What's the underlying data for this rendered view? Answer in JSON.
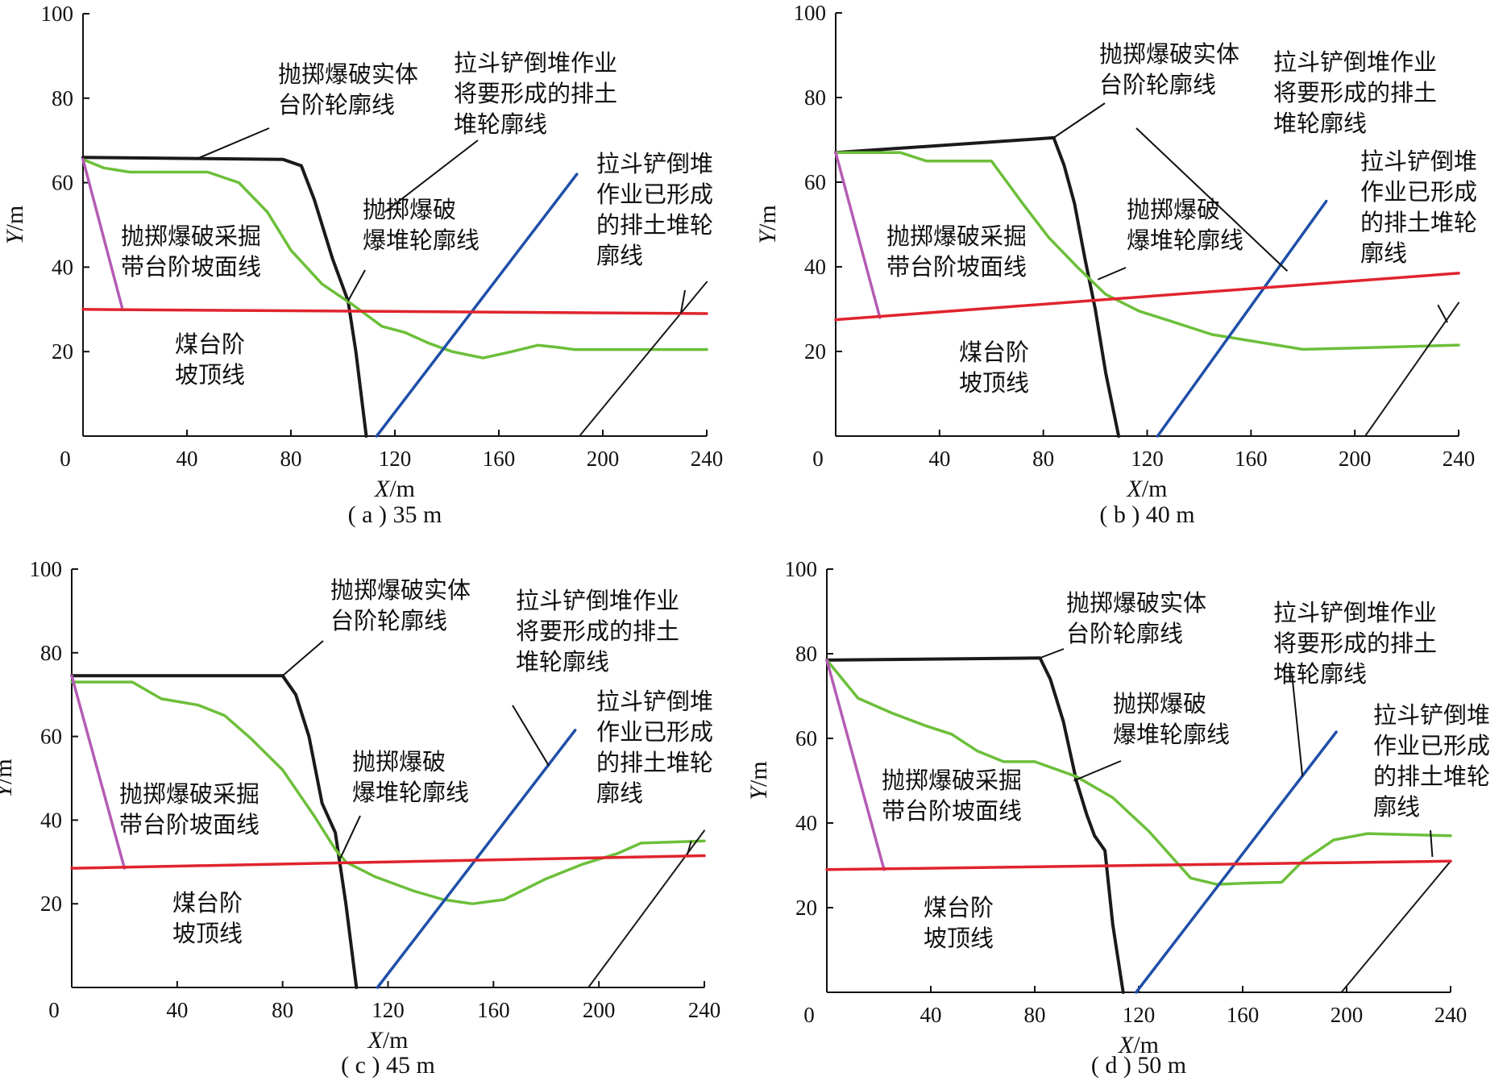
{
  "colors": {
    "solid_bench": "#1a1a1a",
    "muck_pile": "#6cbf3a",
    "planned_dump": "#1f4fa8",
    "formed_dump": "#1a1a1a",
    "mining_slope": "#b45cb4",
    "coal_crest": "#e0242d"
  },
  "labels": {
    "solid_bench": [
      "抛掷爆破实体",
      "台阶轮廓线"
    ],
    "planned_dump": [
      "拉斗铲倒堆作业",
      "将要形成的排土",
      "堆轮廓线"
    ],
    "formed_dump": [
      "拉斗铲倒堆",
      "作业已形成",
      "的排土堆轮",
      "廓线"
    ],
    "muck_pile": [
      "抛掷爆破",
      "爆堆轮廓线"
    ],
    "mining_slope": [
      "抛掷爆破采掘",
      "带台阶坡面线"
    ],
    "coal_crest": [
      "煤台阶",
      "坡顶线"
    ]
  },
  "chart_data": [
    {
      "type": "line",
      "caption": "( a ) 35 m",
      "xlabel": "X/m",
      "ylabel": "Y/m",
      "xlim": [
        0,
        240
      ],
      "ylim": [
        0,
        100
      ],
      "xticks": [
        0,
        40,
        80,
        120,
        160,
        200,
        240
      ],
      "yticks": [
        20,
        40,
        60,
        80,
        100
      ],
      "series": [
        {
          "key": "solid_bench",
          "points": [
            [
              0,
              66
            ],
            [
              77,
              65.5
            ],
            [
              84,
              64
            ],
            [
              89,
              56
            ],
            [
              96,
              42
            ],
            [
              102,
              32
            ],
            [
              105,
              20
            ],
            [
              109,
              0
            ]
          ]
        },
        {
          "key": "muck_pile",
          "points": [
            [
              0,
              65.5
            ],
            [
              8,
              63.5
            ],
            [
              18,
              62.5
            ],
            [
              48,
              62.5
            ],
            [
              60,
              60
            ],
            [
              71,
              53
            ],
            [
              80,
              44
            ],
            [
              92,
              36
            ],
            [
              104,
              31
            ],
            [
              115,
              26
            ],
            [
              124,
              24.5
            ],
            [
              133,
              22
            ],
            [
              142,
              20
            ],
            [
              154,
              18.5
            ],
            [
              165,
              20
            ],
            [
              175,
              21.5
            ],
            [
              183,
              21
            ],
            [
              189,
              20.5
            ],
            [
              214,
              20.5
            ],
            [
              240,
              20.5
            ]
          ]
        },
        {
          "key": "planned_dump",
          "points": [
            [
              113,
              0
            ],
            [
              190,
              62
            ]
          ]
        },
        {
          "key": "formed_dump",
          "points": [
            [
              191,
              0
            ],
            [
              240,
              36.5
            ]
          ]
        },
        {
          "key": "mining_slope",
          "points": [
            [
              0,
              65.5
            ],
            [
              15,
              30.5
            ]
          ]
        },
        {
          "key": "coal_crest",
          "points": [
            [
              0,
              30
            ],
            [
              240,
              29
            ]
          ]
        }
      ]
    },
    {
      "type": "line",
      "caption": "( b ) 40 m",
      "xlabel": "X/m",
      "ylabel": "Y/m",
      "xlim": [
        0,
        240
      ],
      "ylim": [
        0,
        100
      ],
      "xticks": [
        0,
        40,
        80,
        120,
        160,
        200,
        240
      ],
      "yticks": [
        20,
        40,
        60,
        80,
        100
      ],
      "series": [
        {
          "key": "solid_bench",
          "points": [
            [
              0,
              67
            ],
            [
              84,
              70.5
            ],
            [
              88,
              64
            ],
            [
              92,
              55
            ],
            [
              96,
              42
            ],
            [
              100,
              30
            ],
            [
              104,
              15
            ],
            [
              109,
              0
            ]
          ]
        },
        {
          "key": "muck_pile",
          "points": [
            [
              0,
              67
            ],
            [
              25,
              67
            ],
            [
              35,
              65
            ],
            [
              60,
              65
            ],
            [
              66,
              60
            ],
            [
              72,
              55
            ],
            [
              82,
              47
            ],
            [
              93,
              40
            ],
            [
              104,
              33.5
            ],
            [
              117,
              29.5
            ],
            [
              130,
              27
            ],
            [
              145,
              24
            ],
            [
              160,
              22.5
            ],
            [
              180,
              20.5
            ],
            [
              200,
              20.8
            ],
            [
              240,
              21.5
            ]
          ]
        },
        {
          "key": "planned_dump",
          "points": [
            [
              124,
              0
            ],
            [
              189,
              55.5
            ]
          ]
        },
        {
          "key": "formed_dump",
          "points": [
            [
              204,
              0
            ],
            [
              240,
              31.5
            ]
          ]
        },
        {
          "key": "mining_slope",
          "points": [
            [
              0,
              67
            ],
            [
              17,
              28
            ]
          ]
        },
        {
          "key": "coal_crest",
          "points": [
            [
              0,
              27.5
            ],
            [
              240,
              38.5
            ]
          ]
        }
      ]
    },
    {
      "type": "line",
      "caption": "( c ) 45 m",
      "xlabel": "X/m",
      "ylabel": "Y/m",
      "xlim": [
        0,
        240
      ],
      "ylim": [
        0,
        100
      ],
      "xticks": [
        0,
        40,
        80,
        120,
        160,
        200,
        240
      ],
      "yticks": [
        20,
        40,
        60,
        80,
        100
      ],
      "series": [
        {
          "key": "solid_bench",
          "points": [
            [
              0,
              74.5
            ],
            [
              80,
              74.5
            ],
            [
              85,
              70
            ],
            [
              90,
              60
            ],
            [
              95,
              44
            ],
            [
              100,
              37
            ],
            [
              104,
              20
            ],
            [
              108,
              0
            ]
          ]
        },
        {
          "key": "muck_pile",
          "points": [
            [
              0,
              73
            ],
            [
              23,
              73
            ],
            [
              34,
              69
            ],
            [
              48,
              67.5
            ],
            [
              58,
              65
            ],
            [
              68,
              59.5
            ],
            [
              80,
              52
            ],
            [
              92,
              41
            ],
            [
              100,
              33
            ],
            [
              104,
              30
            ],
            [
              115,
              26.5
            ],
            [
              130,
              23
            ],
            [
              141,
              21
            ],
            [
              152,
              20
            ],
            [
              164,
              21
            ],
            [
              180,
              26
            ],
            [
              194,
              29.5
            ],
            [
              207,
              32
            ],
            [
              216,
              34.5
            ],
            [
              240,
              35
            ]
          ]
        },
        {
          "key": "planned_dump",
          "points": [
            [
              116,
              0
            ],
            [
              191,
              61.5
            ]
          ]
        },
        {
          "key": "formed_dump",
          "points": [
            [
              196,
              0
            ],
            [
              240,
              37.5
            ]
          ]
        },
        {
          "key": "mining_slope",
          "points": [
            [
              0,
              74.5
            ],
            [
              20,
              28.5
            ]
          ]
        },
        {
          "key": "coal_crest",
          "points": [
            [
              0,
              28.5
            ],
            [
              240,
              31.5
            ]
          ]
        }
      ]
    },
    {
      "type": "line",
      "caption": "( d ) 50 m",
      "xlabel": "X/m",
      "ylabel": "Y/m",
      "xlim": [
        0,
        240
      ],
      "ylim": [
        0,
        100
      ],
      "xticks": [
        0,
        40,
        80,
        120,
        160,
        200,
        240
      ],
      "yticks": [
        20,
        40,
        60,
        80,
        100
      ],
      "series": [
        {
          "key": "solid_bench",
          "points": [
            [
              0,
              78.5
            ],
            [
              82,
              79
            ],
            [
              86,
              74
            ],
            [
              91,
              64
            ],
            [
              96,
              50
            ],
            [
              100,
              42
            ],
            [
              103,
              37
            ],
            [
              107,
              33.5
            ],
            [
              110,
              16
            ],
            [
              114,
              0
            ]
          ]
        },
        {
          "key": "muck_pile",
          "points": [
            [
              0,
              78.5
            ],
            [
              12,
              69.5
            ],
            [
              25,
              66
            ],
            [
              38,
              63
            ],
            [
              48,
              61
            ],
            [
              58,
              57
            ],
            [
              68,
              54.5
            ],
            [
              80,
              54.5
            ],
            [
              96,
              51
            ],
            [
              110,
              46
            ],
            [
              124,
              38
            ],
            [
              140,
              27
            ],
            [
              150,
              25.5
            ],
            [
              162,
              25.8
            ],
            [
              175,
              26
            ],
            [
              183,
              31
            ],
            [
              195,
              36
            ],
            [
              208,
              37.5
            ],
            [
              240,
              37
            ]
          ]
        },
        {
          "key": "planned_dump",
          "points": [
            [
              119,
              0
            ],
            [
              196,
              61.5
            ]
          ]
        },
        {
          "key": "formed_dump",
          "points": [
            [
              198,
              0
            ],
            [
              240,
              31
            ]
          ]
        },
        {
          "key": "mining_slope",
          "points": [
            [
              0,
              78.5
            ],
            [
              22,
              29
            ]
          ]
        },
        {
          "key": "coal_crest",
          "points": [
            [
              0,
              29
            ],
            [
              240,
              31
            ]
          ]
        }
      ]
    }
  ]
}
